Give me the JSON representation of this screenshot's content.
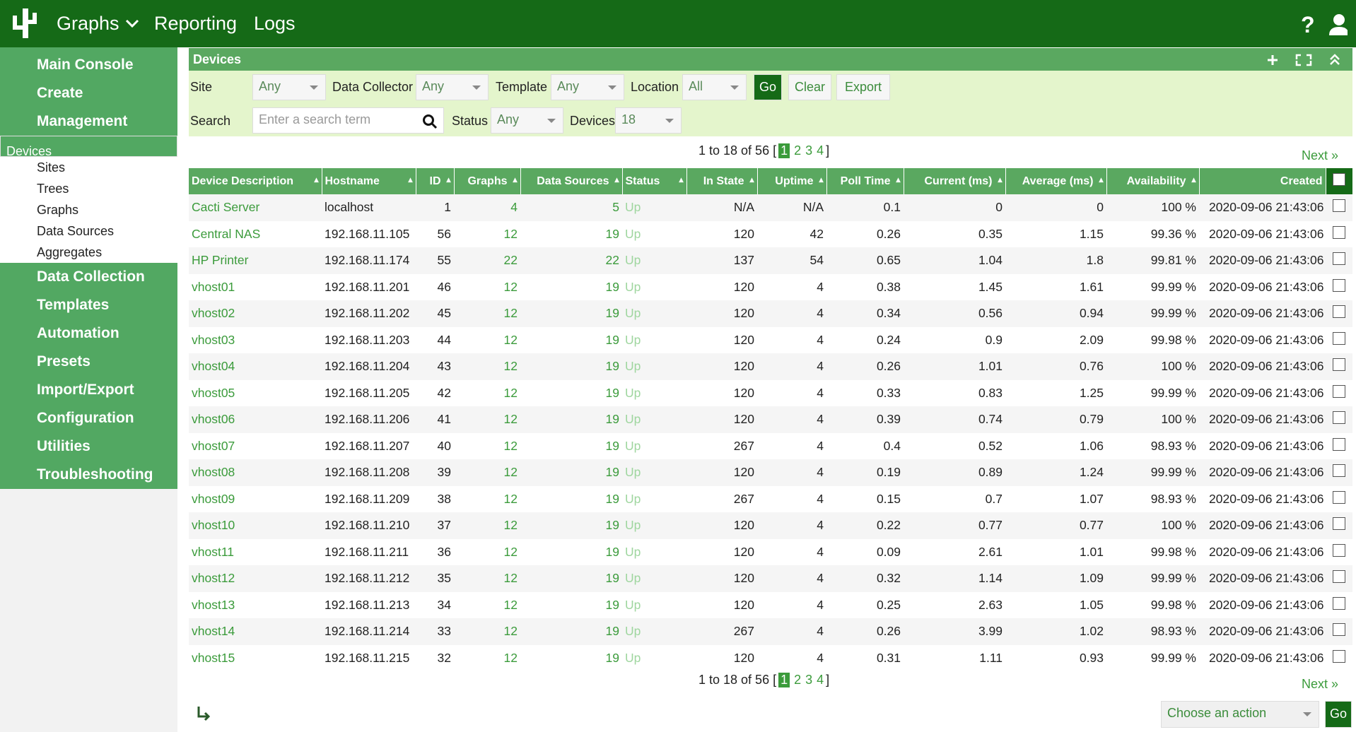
{
  "nav": {
    "items": [
      "Graphs",
      "Reporting",
      "Logs"
    ]
  },
  "sidebar": {
    "menu": [
      {
        "label": "Main Console"
      },
      {
        "label": "Create"
      },
      {
        "label": "Management",
        "children": [
          "Devices",
          "Sites",
          "Trees",
          "Graphs",
          "Data Sources",
          "Aggregates"
        ]
      },
      {
        "label": "Data Collection"
      },
      {
        "label": "Templates"
      },
      {
        "label": "Automation"
      },
      {
        "label": "Presets"
      },
      {
        "label": "Import/Export"
      },
      {
        "label": "Configuration"
      },
      {
        "label": "Utilities"
      },
      {
        "label": "Troubleshooting"
      }
    ]
  },
  "panel": {
    "title": "Devices"
  },
  "filters": {
    "site": {
      "label": "Site",
      "value": "Any"
    },
    "data_collector": {
      "label": "Data Collector",
      "value": "Any"
    },
    "template": {
      "label": "Template",
      "value": "Any"
    },
    "location": {
      "label": "Location",
      "value": "All"
    },
    "search": {
      "label": "Search",
      "placeholder": "Enter a search term"
    },
    "status": {
      "label": "Status",
      "value": "Any"
    },
    "devices": {
      "label": "Devices",
      "value": "18"
    },
    "buttons": [
      "Go",
      "Clear",
      "Export"
    ]
  },
  "pagination": {
    "summary": "1 to 18 of 56 [",
    "pages": [
      "1",
      "2",
      "3",
      "4"
    ],
    "close": "]",
    "next": "Next"
  },
  "table": {
    "columns": [
      "Device Description",
      "Hostname",
      "ID",
      "Graphs",
      "Data Sources",
      "Status",
      "In State",
      "Uptime",
      "Poll Time",
      "Current (ms)",
      "Average (ms)",
      "Availability",
      "Created"
    ],
    "rows": [
      [
        "Cacti Server",
        "localhost",
        "1",
        "4",
        "5",
        "Up",
        "N/A",
        "N/A",
        "0.1",
        "0",
        "0",
        "100 %",
        "2020-09-06 21:43:06"
      ],
      [
        "Central NAS",
        "192.168.11.105",
        "56",
        "12",
        "19",
        "Up",
        "120",
        "42",
        "0.26",
        "0.35",
        "1.15",
        "99.36 %",
        "2020-09-06 21:43:06"
      ],
      [
        "HP Printer",
        "192.168.11.174",
        "55",
        "22",
        "22",
        "Up",
        "137",
        "54",
        "0.65",
        "1.04",
        "1.8",
        "99.81 %",
        "2020-09-06 21:43:06"
      ],
      [
        "vhost01",
        "192.168.11.201",
        "46",
        "12",
        "19",
        "Up",
        "120",
        "4",
        "0.38",
        "1.45",
        "1.61",
        "99.99 %",
        "2020-09-06 21:43:06"
      ],
      [
        "vhost02",
        "192.168.11.202",
        "45",
        "12",
        "19",
        "Up",
        "120",
        "4",
        "0.34",
        "0.56",
        "0.94",
        "99.99 %",
        "2020-09-06 21:43:06"
      ],
      [
        "vhost03",
        "192.168.11.203",
        "44",
        "12",
        "19",
        "Up",
        "120",
        "4",
        "0.24",
        "0.9",
        "2.09",
        "99.98 %",
        "2020-09-06 21:43:06"
      ],
      [
        "vhost04",
        "192.168.11.204",
        "43",
        "12",
        "19",
        "Up",
        "120",
        "4",
        "0.26",
        "1.01",
        "0.76",
        "100 %",
        "2020-09-06 21:43:06"
      ],
      [
        "vhost05",
        "192.168.11.205",
        "42",
        "12",
        "19",
        "Up",
        "120",
        "4",
        "0.33",
        "0.83",
        "1.25",
        "99.99 %",
        "2020-09-06 21:43:06"
      ],
      [
        "vhost06",
        "192.168.11.206",
        "41",
        "12",
        "19",
        "Up",
        "120",
        "4",
        "0.39",
        "0.74",
        "0.79",
        "100 %",
        "2020-09-06 21:43:06"
      ],
      [
        "vhost07",
        "192.168.11.207",
        "40",
        "12",
        "19",
        "Up",
        "267",
        "4",
        "0.4",
        "0.52",
        "1.06",
        "98.93 %",
        "2020-09-06 21:43:06"
      ],
      [
        "vhost08",
        "192.168.11.208",
        "39",
        "12",
        "19",
        "Up",
        "120",
        "4",
        "0.19",
        "0.89",
        "1.24",
        "99.99 %",
        "2020-09-06 21:43:06"
      ],
      [
        "vhost09",
        "192.168.11.209",
        "38",
        "12",
        "19",
        "Up",
        "267",
        "4",
        "0.15",
        "0.7",
        "1.07",
        "98.93 %",
        "2020-09-06 21:43:06"
      ],
      [
        "vhost10",
        "192.168.11.210",
        "37",
        "12",
        "19",
        "Up",
        "120",
        "4",
        "0.22",
        "0.77",
        "0.77",
        "100 %",
        "2020-09-06 21:43:06"
      ],
      [
        "vhost11",
        "192.168.11.211",
        "36",
        "12",
        "19",
        "Up",
        "120",
        "4",
        "0.09",
        "2.61",
        "1.01",
        "99.98 %",
        "2020-09-06 21:43:06"
      ],
      [
        "vhost12",
        "192.168.11.212",
        "35",
        "12",
        "19",
        "Up",
        "120",
        "4",
        "0.32",
        "1.14",
        "1.09",
        "99.99 %",
        "2020-09-06 21:43:06"
      ],
      [
        "vhost13",
        "192.168.11.213",
        "34",
        "12",
        "19",
        "Up",
        "120",
        "4",
        "0.25",
        "2.63",
        "1.05",
        "99.98 %",
        "2020-09-06 21:43:06"
      ],
      [
        "vhost14",
        "192.168.11.214",
        "33",
        "12",
        "19",
        "Up",
        "267",
        "4",
        "0.26",
        "3.99",
        "1.02",
        "98.93 %",
        "2020-09-06 21:43:06"
      ],
      [
        "vhost15",
        "192.168.11.215",
        "32",
        "12",
        "19",
        "Up",
        "120",
        "4",
        "0.31",
        "1.11",
        "0.93",
        "99.99 %",
        "2020-09-06 21:43:06"
      ]
    ]
  },
  "actions": {
    "select": "Choose an action",
    "button": "Go"
  }
}
